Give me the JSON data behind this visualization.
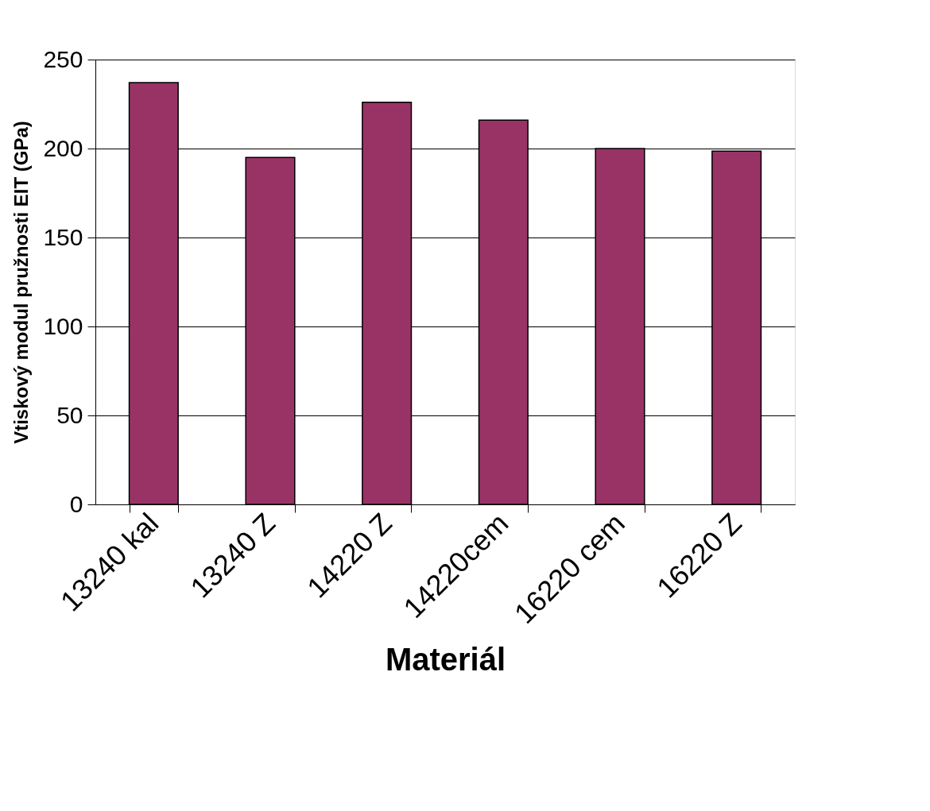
{
  "chart_data": {
    "type": "bar",
    "xlabel": "Materiál",
    "ylabel": "Vtiskový modul pružnosti EIT (GPa)",
    "categories": [
      "13240 kal",
      "13240 Z",
      "14220 Z",
      "14220cem",
      "16220 cem",
      "16220 Z"
    ],
    "values": [
      237,
      195,
      226,
      216,
      200,
      198.5
    ],
    "color": "#993366",
    "ylim": [
      0,
      250
    ],
    "yticks": [
      0,
      50,
      100,
      150,
      200,
      250
    ],
    "grid": "y"
  }
}
